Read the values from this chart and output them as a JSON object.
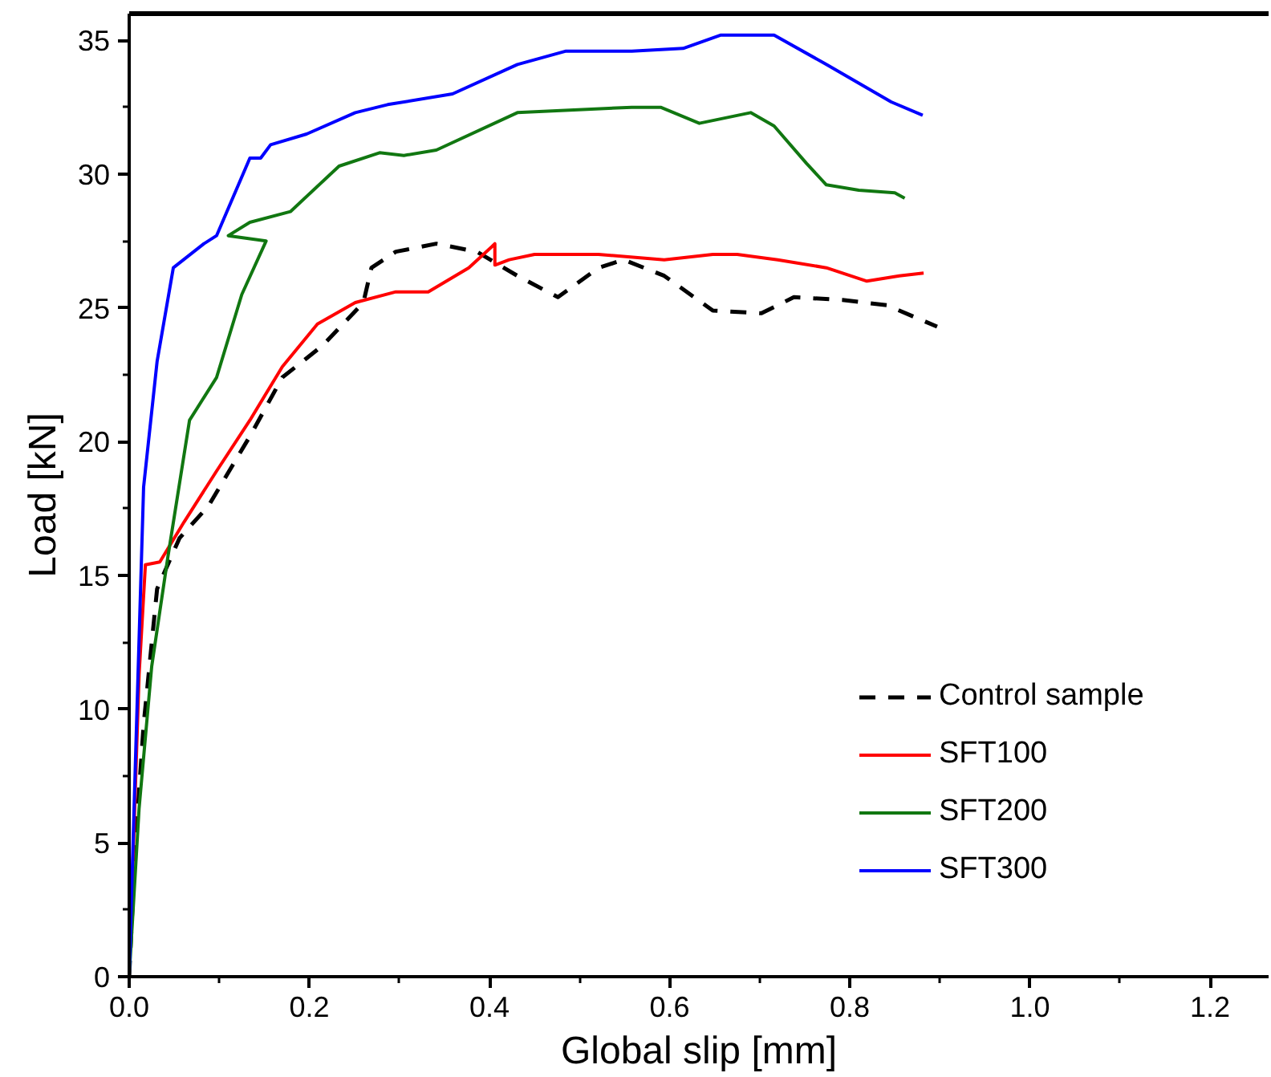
{
  "chart_data": {
    "type": "line",
    "xlabel": "Global slip [mm]",
    "ylabel": "Load [kN]",
    "xlim": [
      0,
      1.265
    ],
    "ylim": [
      0,
      36
    ],
    "xticks": [
      {
        "value": 0,
        "label": "0.0"
      },
      {
        "value": 0.2,
        "label": "0.2"
      },
      {
        "value": 0.4,
        "label": "0.4"
      },
      {
        "value": 0.6,
        "label": "0.6"
      },
      {
        "value": 0.8,
        "label": "0.8"
      },
      {
        "value": 1.0,
        "label": "1.0"
      },
      {
        "value": 1.2,
        "label": "1.2"
      }
    ],
    "yticks": [
      0,
      5,
      10,
      15,
      20,
      25,
      30,
      35
    ],
    "grid": false,
    "legend": "bottom right",
    "marker": "none",
    "series": [
      {
        "name": "Control sample",
        "color": "#000000",
        "line_style": "dashed",
        "x": [
          0,
          0.007,
          0.016,
          0.031,
          0.056,
          0.088,
          0.134,
          0.17,
          0.215,
          0.26,
          0.269,
          0.296,
          0.341,
          0.386,
          0.431,
          0.476,
          0.521,
          0.549,
          0.594,
          0.648,
          0.702,
          0.738,
          0.792,
          0.841,
          0.897
        ],
        "values": [
          0,
          5,
          9.4,
          14.5,
          16.4,
          17.6,
          20.2,
          22.4,
          23.6,
          25.2,
          26.5,
          27.1,
          27.4,
          27.1,
          26.2,
          25.4,
          26.5,
          26.8,
          26.2,
          24.9,
          24.8,
          25.4,
          25.3,
          25.1,
          24.3
        ]
      },
      {
        "name": "SFT100",
        "color": "#ff0000",
        "line_style": "solid",
        "x": [
          0,
          0.011,
          0.018,
          0.034,
          0.061,
          0.097,
          0.134,
          0.17,
          0.209,
          0.251,
          0.296,
          0.332,
          0.377,
          0.403,
          0.406,
          0.406,
          0.422,
          0.45,
          0.521,
          0.594,
          0.648,
          0.675,
          0.72,
          0.774,
          0.819,
          0.855,
          0.882
        ],
        "values": [
          0,
          11.3,
          15.4,
          15.5,
          17,
          18.9,
          20.8,
          22.8,
          24.4,
          25.2,
          25.6,
          25.6,
          26.5,
          27.3,
          27.4,
          26.6,
          26.8,
          27.0,
          27.0,
          26.8,
          27.0,
          27.0,
          26.8,
          26.5,
          26.0,
          26.2,
          26.3
        ]
      },
      {
        "name": "SFT200",
        "color": "#117711",
        "line_style": "solid",
        "x": [
          0,
          0.011,
          0.025,
          0.043,
          0.067,
          0.097,
          0.125,
          0.152,
          0.11,
          0.134,
          0.179,
          0.233,
          0.278,
          0.305,
          0.341,
          0.431,
          0.558,
          0.59,
          0.633,
          0.69,
          0.716,
          0.752,
          0.774,
          0.81,
          0.85,
          0.861
        ],
        "values": [
          0,
          6.3,
          11.6,
          15.7,
          20.8,
          22.4,
          25.5,
          27.5,
          27.7,
          28.2,
          28.6,
          30.3,
          30.8,
          30.7,
          30.9,
          32.3,
          32.5,
          32.5,
          31.9,
          32.3,
          31.8,
          30.4,
          29.6,
          29.4,
          29.3,
          29.1
        ]
      },
      {
        "name": "SFT300",
        "color": "#0000ff",
        "line_style": "solid",
        "x": [
          0,
          0.007,
          0.016,
          0.031,
          0.049,
          0.083,
          0.097,
          0.134,
          0.146,
          0.157,
          0.197,
          0.251,
          0.287,
          0.359,
          0.431,
          0.485,
          0.558,
          0.615,
          0.657,
          0.716,
          0.774,
          0.846,
          0.881
        ],
        "values": [
          0,
          8.1,
          18.3,
          23,
          26.5,
          27.4,
          27.7,
          30.6,
          30.6,
          31.1,
          31.5,
          32.3,
          32.6,
          33,
          34.1,
          34.6,
          34.6,
          34.7,
          35.2,
          35.2,
          34.1,
          32.7,
          32.2
        ]
      }
    ]
  }
}
